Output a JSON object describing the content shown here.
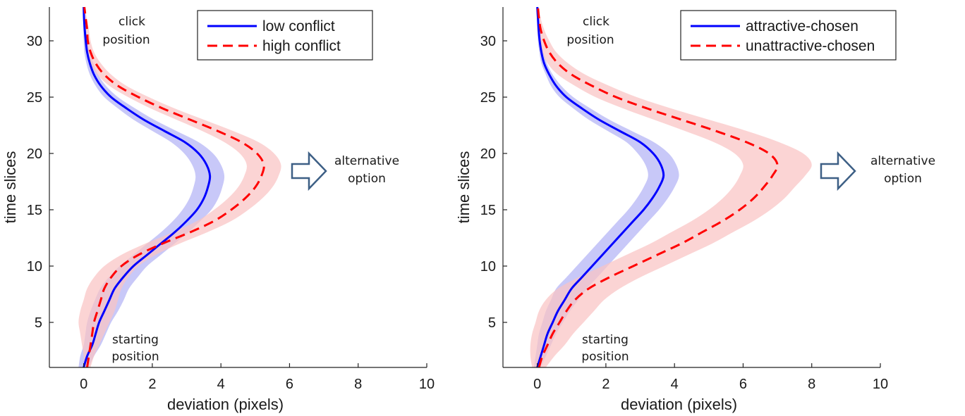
{
  "chart_data": [
    {
      "type": "line",
      "xlabel": "deviation (pixels)",
      "ylabel": "time slices",
      "xlim": [
        -1,
        10
      ],
      "ylim": [
        1,
        33
      ],
      "xticks": [
        "0",
        "2",
        "4",
        "6",
        "8",
        "10"
      ],
      "yticks": [
        "5",
        "10",
        "15",
        "20",
        "25",
        "30"
      ],
      "legend_position": "top-right",
      "annotations": {
        "top": [
          "click",
          "position"
        ],
        "bottom": [
          "starting",
          "position"
        ],
        "right": [
          "alternative",
          "option"
        ]
      },
      "y": [
        1,
        2,
        3,
        4,
        5,
        6,
        7,
        8,
        9,
        10,
        11,
        12,
        13,
        14,
        15,
        16,
        17,
        18,
        19,
        20,
        21,
        22,
        23,
        24,
        25,
        26,
        27,
        28,
        29,
        30,
        31,
        32,
        33
      ],
      "series": [
        {
          "name": "low conflict",
          "color": "#0000ff",
          "style": "solid",
          "band_color": "#b3b3f5",
          "values": [
            0.0,
            0.1,
            0.25,
            0.35,
            0.45,
            0.6,
            0.75,
            0.9,
            1.15,
            1.45,
            1.85,
            2.25,
            2.65,
            3.0,
            3.3,
            3.5,
            3.62,
            3.68,
            3.58,
            3.35,
            2.95,
            2.35,
            1.75,
            1.25,
            0.8,
            0.5,
            0.3,
            0.18,
            0.1,
            0.06,
            0.03,
            0.01,
            0.0
          ],
          "band": [
            0.15,
            0.2,
            0.25,
            0.3,
            0.35,
            0.4,
            0.42,
            0.42,
            0.42,
            0.4,
            0.4,
            0.4,
            0.4,
            0.4,
            0.42,
            0.42,
            0.42,
            0.42,
            0.42,
            0.42,
            0.4,
            0.35,
            0.3,
            0.25,
            0.2,
            0.15,
            0.12,
            0.1,
            0.08,
            0.06,
            0.04,
            0.02,
            0.02
          ]
        },
        {
          "name": "high conflict",
          "color": "#ff0000",
          "style": "dashed",
          "band_color": "#fac4c4",
          "values": [
            0.1,
            0.15,
            0.2,
            0.25,
            0.3,
            0.4,
            0.5,
            0.6,
            0.8,
            1.1,
            1.6,
            2.3,
            3.1,
            3.8,
            4.3,
            4.7,
            5.0,
            5.18,
            5.25,
            5.05,
            4.6,
            3.9,
            3.1,
            2.3,
            1.6,
            1.0,
            0.6,
            0.35,
            0.2,
            0.12,
            0.1,
            0.06,
            0.02
          ],
          "band": [
            0.1,
            0.15,
            0.25,
            0.35,
            0.45,
            0.5,
            0.5,
            0.5,
            0.5,
            0.5,
            0.5,
            0.5,
            0.5,
            0.5,
            0.5,
            0.5,
            0.5,
            0.5,
            0.5,
            0.5,
            0.5,
            0.45,
            0.4,
            0.35,
            0.3,
            0.25,
            0.2,
            0.15,
            0.1,
            0.08,
            0.05,
            0.03,
            0.02
          ]
        }
      ]
    },
    {
      "type": "line",
      "xlabel": "deviation (pixels)",
      "ylabel": "time slices",
      "xlim": [
        -1,
        10
      ],
      "ylim": [
        1,
        33
      ],
      "xticks": [
        "0",
        "2",
        "4",
        "6",
        "8",
        "10"
      ],
      "yticks": [
        "5",
        "10",
        "15",
        "20",
        "25",
        "30"
      ],
      "legend_position": "top-right",
      "annotations": {
        "top": [
          "click",
          "position"
        ],
        "bottom": [
          "starting",
          "position"
        ],
        "right": [
          "alternative",
          "option"
        ]
      },
      "y": [
        1,
        2,
        3,
        4,
        5,
        6,
        7,
        8,
        9,
        10,
        11,
        12,
        13,
        14,
        15,
        16,
        17,
        18,
        19,
        20,
        21,
        22,
        23,
        24,
        25,
        26,
        27,
        28,
        29,
        30,
        31,
        32,
        33
      ],
      "series": [
        {
          "name": "attractive-chosen",
          "color": "#0000ff",
          "style": "solid",
          "band_color": "#b3b3f5",
          "values": [
            0.0,
            0.1,
            0.2,
            0.3,
            0.45,
            0.6,
            0.8,
            1.0,
            1.3,
            1.6,
            1.9,
            2.2,
            2.5,
            2.8,
            3.1,
            3.35,
            3.55,
            3.68,
            3.6,
            3.38,
            3.0,
            2.4,
            1.8,
            1.3,
            0.85,
            0.55,
            0.35,
            0.2,
            0.12,
            0.07,
            0.04,
            0.02,
            0.0
          ],
          "band": [
            0.1,
            0.15,
            0.2,
            0.25,
            0.3,
            0.35,
            0.4,
            0.45,
            0.45,
            0.45,
            0.45,
            0.45,
            0.45,
            0.45,
            0.45,
            0.45,
            0.45,
            0.45,
            0.45,
            0.45,
            0.4,
            0.35,
            0.3,
            0.25,
            0.2,
            0.15,
            0.1,
            0.08,
            0.06,
            0.05,
            0.04,
            0.03,
            0.02
          ]
        },
        {
          "name": "unattractive-chosen",
          "color": "#ff0000",
          "style": "dashed",
          "band_color": "#fac4c4",
          "values": [
            0.05,
            0.15,
            0.3,
            0.45,
            0.65,
            0.85,
            1.1,
            1.5,
            2.1,
            2.8,
            3.5,
            4.2,
            4.8,
            5.4,
            5.9,
            6.3,
            6.6,
            6.85,
            7.0,
            6.75,
            6.1,
            5.2,
            4.2,
            3.2,
            2.3,
            1.6,
            1.0,
            0.6,
            0.35,
            0.2,
            0.1,
            0.05,
            0.02
          ],
          "band": [
            0.2,
            0.35,
            0.5,
            0.6,
            0.7,
            0.8,
            0.85,
            0.9,
            0.9,
            0.9,
            0.9,
            0.9,
            0.9,
            0.9,
            0.9,
            0.9,
            0.9,
            0.95,
            1.0,
            1.0,
            0.95,
            0.9,
            0.8,
            0.7,
            0.6,
            0.5,
            0.4,
            0.3,
            0.2,
            0.15,
            0.1,
            0.05,
            0.02
          ]
        }
      ]
    }
  ]
}
